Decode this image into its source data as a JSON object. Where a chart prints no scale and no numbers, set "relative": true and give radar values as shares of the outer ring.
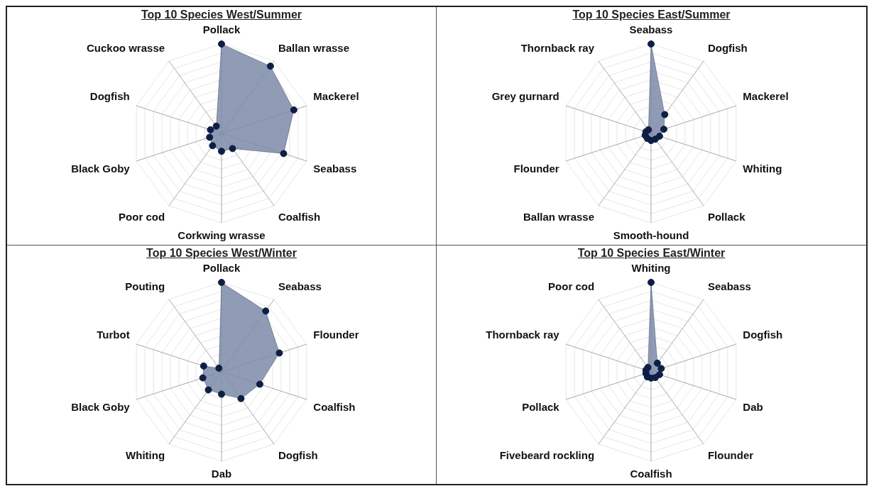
{
  "chart_data": [
    {
      "type": "radar",
      "title": "Top 10 Species West/Summer",
      "categories": [
        "Pollack",
        "Ballan wrasse",
        "Mackerel",
        "Seabass",
        "Coalfish",
        "Corkwing wrasse",
        "Poor cod",
        "Black Goby",
        "Dogfish",
        "Cuckoo wrasse"
      ],
      "relative": true,
      "grid": true,
      "legend": false,
      "marker": "circle",
      "series": [
        {
          "color": "#0d1f45",
          "values": [
            1,
            0.93,
            0.85,
            0.73,
            0.21,
            0.2,
            0.17,
            0.14,
            0.13,
            0.1
          ]
        }
      ]
    },
    {
      "type": "radar",
      "title": "Top 10 Species East/Summer",
      "categories": [
        "Seabass",
        "Dogfish",
        "Mackerel",
        "Whiting",
        "Pollack",
        "Smooth-hound",
        "Ballan wrasse",
        "Flounder",
        "Grey gurnard",
        "Thornback ray"
      ],
      "relative": true,
      "grid": true,
      "legend": false,
      "marker": "circle",
      "series": [
        {
          "color": "#0d1f45",
          "values": [
            1,
            0.26,
            0.15,
            0.1,
            0.08,
            0.08,
            0.07,
            0.07,
            0.06,
            0.05
          ]
        }
      ]
    },
    {
      "type": "radar",
      "title": "Top 10 Species West/Winter",
      "categories": [
        "Pollack",
        "Seabass",
        "Flounder",
        "Coalfish",
        "Dogfish",
        "Dab",
        "Whiting",
        "Black Goby",
        "Turbot",
        "Pouting"
      ],
      "relative": true,
      "grid": true,
      "legend": false,
      "marker": "circle",
      "series": [
        {
          "color": "#0d1f45",
          "values": [
            1,
            0.84,
            0.68,
            0.45,
            0.37,
            0.25,
            0.25,
            0.22,
            0.21,
            0.05
          ]
        }
      ]
    },
    {
      "type": "radar",
      "title": "Top 10 Species East/Winter",
      "categories": [
        "Whiting",
        "Seabass",
        "Dogfish",
        "Dab",
        "Flounder",
        "Coalfish",
        "Fivebeard rockling",
        "Pollack",
        "Thornback ray",
        "Poor cod"
      ],
      "relative": true,
      "grid": true,
      "legend": false,
      "marker": "circle",
      "series": [
        {
          "color": "#0d1f45",
          "values": [
            1,
            0.12,
            0.12,
            0.1,
            0.08,
            0.07,
            0.07,
            0.06,
            0.06,
            0.06
          ]
        }
      ]
    }
  ]
}
